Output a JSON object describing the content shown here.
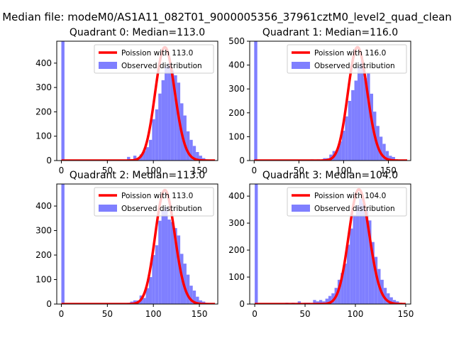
{
  "figure": {
    "suptitle": "Median file: modeM0/AS1A11_082T01_9000005356_37961cztM0_level2_quad_clean"
  },
  "colors": {
    "fit_line": "#ff0000",
    "histogram": "#7f7fff",
    "axes": "#000000"
  },
  "chart_data": [
    {
      "type": "bar",
      "title": "Quadrant 0: Median=113.0",
      "median": 113.0,
      "xlabel": "",
      "ylabel": "",
      "xlim": [
        -5,
        170
      ],
      "ylim": [
        0,
        490
      ],
      "xticks": [
        0,
        50,
        100,
        150
      ],
      "yticks": [
        0,
        100,
        200,
        300,
        400
      ],
      "legend": {
        "position": "top-right",
        "entries": [
          "Poission with 113.0",
          "Observed distribution"
        ]
      },
      "grid": false,
      "series": [
        {
          "name": "Observed distribution",
          "kind": "histogram",
          "bin_width": 3.4,
          "bins": [
            {
              "x": 0,
              "y": 490
            },
            {
              "x": 71.4,
              "y": 15
            },
            {
              "x": 74.8,
              "y": 5
            },
            {
              "x": 78.2,
              "y": 20
            },
            {
              "x": 81.6,
              "y": 10
            },
            {
              "x": 85.0,
              "y": 25
            },
            {
              "x": 88.4,
              "y": 40
            },
            {
              "x": 91.8,
              "y": 55
            },
            {
              "x": 95.2,
              "y": 85
            },
            {
              "x": 98.6,
              "y": 170
            },
            {
              "x": 102.0,
              "y": 210
            },
            {
              "x": 105.4,
              "y": 275
            },
            {
              "x": 108.8,
              "y": 330
            },
            {
              "x": 112.2,
              "y": 385
            },
            {
              "x": 115.6,
              "y": 395
            },
            {
              "x": 119.0,
              "y": 370
            },
            {
              "x": 122.4,
              "y": 350
            },
            {
              "x": 125.8,
              "y": 320
            },
            {
              "x": 129.2,
              "y": 235
            },
            {
              "x": 132.6,
              "y": 185
            },
            {
              "x": 136.0,
              "y": 120
            },
            {
              "x": 139.4,
              "y": 85
            },
            {
              "x": 142.8,
              "y": 60
            },
            {
              "x": 146.2,
              "y": 35
            },
            {
              "x": 149.6,
              "y": 20
            },
            {
              "x": 153.0,
              "y": 10
            },
            {
              "x": 156.4,
              "y": 5
            }
          ]
        },
        {
          "name": "Poission with 113.0",
          "kind": "poisson_fit",
          "mu": 113.0,
          "x_range": [
            0,
            167
          ],
          "peak": 465
        }
      ]
    },
    {
      "type": "bar",
      "title": "Quadrant 1: Median=116.0",
      "median": 116.0,
      "xlabel": "",
      "ylabel": "",
      "xlim": [
        -5,
        175
      ],
      "ylim": [
        0,
        500
      ],
      "xticks": [
        0,
        50,
        100,
        150
      ],
      "yticks": [
        0,
        100,
        200,
        300,
        400,
        500
      ],
      "legend": {
        "position": "top-right",
        "entries": [
          "Poission with 116.0",
          "Observed distribution"
        ]
      },
      "grid": false,
      "series": [
        {
          "name": "Observed distribution",
          "kind": "histogram",
          "bin_width": 3.5,
          "bins": [
            {
              "x": 0,
              "y": 500
            },
            {
              "x": 63.0,
              "y": 5
            },
            {
              "x": 70.0,
              "y": 5
            },
            {
              "x": 77.0,
              "y": 10
            },
            {
              "x": 80.5,
              "y": 10
            },
            {
              "x": 84.0,
              "y": 25
            },
            {
              "x": 87.5,
              "y": 40
            },
            {
              "x": 91.0,
              "y": 45
            },
            {
              "x": 94.5,
              "y": 80
            },
            {
              "x": 98.0,
              "y": 125
            },
            {
              "x": 101.5,
              "y": 185
            },
            {
              "x": 105.0,
              "y": 250
            },
            {
              "x": 108.5,
              "y": 295
            },
            {
              "x": 112.0,
              "y": 335
            },
            {
              "x": 115.5,
              "y": 395
            },
            {
              "x": 119.0,
              "y": 420
            },
            {
              "x": 122.5,
              "y": 345
            },
            {
              "x": 126.0,
              "y": 365
            },
            {
              "x": 129.5,
              "y": 280
            },
            {
              "x": 133.0,
              "y": 205
            },
            {
              "x": 136.5,
              "y": 145
            },
            {
              "x": 140.0,
              "y": 100
            },
            {
              "x": 143.5,
              "y": 70
            },
            {
              "x": 147.0,
              "y": 40
            },
            {
              "x": 150.5,
              "y": 20
            },
            {
              "x": 154.0,
              "y": 15
            },
            {
              "x": 157.5,
              "y": 5
            }
          ]
        },
        {
          "name": "Poission with 116.0",
          "kind": "poisson_fit",
          "mu": 116.0,
          "x_range": [
            0,
            171
          ],
          "peak": 475
        }
      ]
    },
    {
      "type": "bar",
      "title": "Quadrant 2: Median=113.0",
      "median": 113.0,
      "xlabel": "",
      "ylabel": "",
      "xlim": [
        -5,
        170
      ],
      "ylim": [
        0,
        490
      ],
      "xticks": [
        0,
        50,
        100,
        150
      ],
      "yticks": [
        0,
        100,
        200,
        300,
        400
      ],
      "legend": {
        "position": "top-right",
        "entries": [
          "Poission with 113.0",
          "Observed distribution"
        ]
      },
      "grid": false,
      "series": [
        {
          "name": "Observed distribution",
          "kind": "histogram",
          "bin_width": 3.4,
          "bins": [
            {
              "x": 0,
              "y": 490
            },
            {
              "x": 71.4,
              "y": 5
            },
            {
              "x": 74.8,
              "y": 10
            },
            {
              "x": 78.2,
              "y": 15
            },
            {
              "x": 81.6,
              "y": 15
            },
            {
              "x": 85.0,
              "y": 35
            },
            {
              "x": 88.4,
              "y": 25
            },
            {
              "x": 91.8,
              "y": 65
            },
            {
              "x": 95.2,
              "y": 110
            },
            {
              "x": 98.6,
              "y": 200
            },
            {
              "x": 102.0,
              "y": 240
            },
            {
              "x": 105.4,
              "y": 340
            },
            {
              "x": 108.8,
              "y": 380
            },
            {
              "x": 112.2,
              "y": 395
            },
            {
              "x": 115.6,
              "y": 345
            },
            {
              "x": 119.0,
              "y": 335
            },
            {
              "x": 122.4,
              "y": 310
            },
            {
              "x": 125.8,
              "y": 280
            },
            {
              "x": 129.2,
              "y": 205
            },
            {
              "x": 132.6,
              "y": 165
            },
            {
              "x": 136.0,
              "y": 120
            },
            {
              "x": 139.4,
              "y": 75
            },
            {
              "x": 142.8,
              "y": 55
            },
            {
              "x": 146.2,
              "y": 30
            },
            {
              "x": 149.6,
              "y": 15
            },
            {
              "x": 153.0,
              "y": 10
            },
            {
              "x": 156.4,
              "y": 5
            }
          ]
        },
        {
          "name": "Poission with 113.0",
          "kind": "poisson_fit",
          "mu": 113.0,
          "x_range": [
            0,
            167
          ],
          "peak": 465
        }
      ]
    },
    {
      "type": "bar",
      "title": "Quadrant 3: Median=104.0",
      "median": 104.0,
      "xlabel": "",
      "ylabel": "",
      "xlim": [
        -5,
        155
      ],
      "ylim": [
        0,
        445
      ],
      "xticks": [
        0,
        50,
        100,
        150
      ],
      "yticks": [
        0,
        100,
        200,
        300,
        400
      ],
      "legend": {
        "position": "top-right",
        "entries": [
          "Poission with 104.0",
          "Observed distribution"
        ]
      },
      "grid": false,
      "series": [
        {
          "name": "Observed distribution",
          "kind": "histogram",
          "bin_width": 3.05,
          "bins": [
            {
              "x": 0,
              "y": 445
            },
            {
              "x": 30.5,
              "y": 5
            },
            {
              "x": 36.6,
              "y": 5
            },
            {
              "x": 42.7,
              "y": 10
            },
            {
              "x": 48.8,
              "y": 5
            },
            {
              "x": 51.85,
              "y": 5
            },
            {
              "x": 57.95,
              "y": 15
            },
            {
              "x": 61.0,
              "y": 10
            },
            {
              "x": 64.05,
              "y": 15
            },
            {
              "x": 67.1,
              "y": 10
            },
            {
              "x": 70.15,
              "y": 20
            },
            {
              "x": 73.2,
              "y": 30
            },
            {
              "x": 76.25,
              "y": 40
            },
            {
              "x": 79.3,
              "y": 60
            },
            {
              "x": 82.35,
              "y": 90
            },
            {
              "x": 85.4,
              "y": 115
            },
            {
              "x": 88.45,
              "y": 150
            },
            {
              "x": 91.5,
              "y": 220
            },
            {
              "x": 94.55,
              "y": 280
            },
            {
              "x": 97.6,
              "y": 330
            },
            {
              "x": 100.65,
              "y": 365
            },
            {
              "x": 103.7,
              "y": 390
            },
            {
              "x": 106.75,
              "y": 375
            },
            {
              "x": 109.8,
              "y": 350
            },
            {
              "x": 112.85,
              "y": 310
            },
            {
              "x": 115.9,
              "y": 230
            },
            {
              "x": 118.95,
              "y": 175
            },
            {
              "x": 122.0,
              "y": 130
            },
            {
              "x": 125.05,
              "y": 90
            },
            {
              "x": 128.1,
              "y": 60
            },
            {
              "x": 131.15,
              "y": 40
            },
            {
              "x": 134.2,
              "y": 25
            },
            {
              "x": 137.25,
              "y": 15
            },
            {
              "x": 140.3,
              "y": 10
            },
            {
              "x": 143.35,
              "y": 5
            }
          ]
        },
        {
          "name": "Poission with 104.0",
          "kind": "poisson_fit",
          "mu": 104.0,
          "x_range": [
            0,
            150
          ],
          "peak": 425
        }
      ]
    }
  ]
}
